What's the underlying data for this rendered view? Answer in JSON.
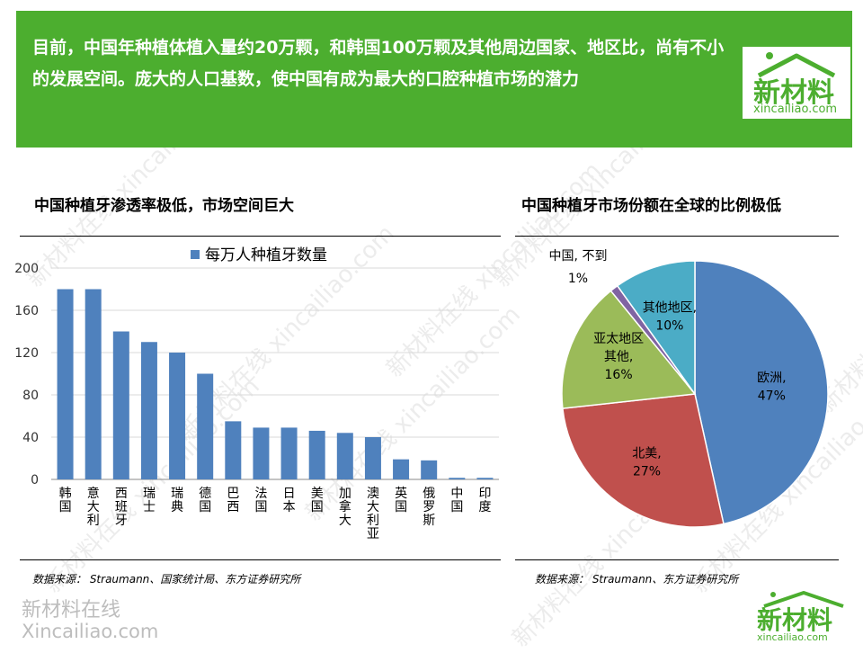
{
  "banner": {
    "text": "目前，中国年种植体植入量约20万颗，和韩国100万颗及其他周边国家、地区比，尚有不小的发展空间。庞大的人口基数，使中国有成为最大的口腔种植市场的潜力"
  },
  "logo": {
    "cn": "新材料",
    "en": "xincailiao.com"
  },
  "left_title": "中国种植牙渗透率极低，市场空间巨大",
  "right_title": "中国种植牙市场份额在全球的比例极低",
  "left_source": "数据来源： Straumann、国家统计局、东方证券研究所",
  "right_source": "数据来源： Straumann、东方证券研究所",
  "bottom_watermark": {
    "cn": "新材料在线",
    "en": "Xincailiao.com"
  },
  "watermark_text": "新材料在线 xincailiao.com",
  "colors": {
    "brand_green": "#4cae2f",
    "bar": "#4f81bd",
    "europe": "#4f81bd",
    "north_america": "#c0504d",
    "asia_pacific": "#9bbb59",
    "china": "#8064a2",
    "other": "#4bacc6"
  },
  "chart_data": [
    {
      "type": "bar",
      "title": "",
      "legend": "每万人种植牙数量",
      "legend_position": "top",
      "grid": true,
      "categories": [
        "韩国",
        "意大利",
        "西班牙",
        "瑞士",
        "瑞典",
        "德国",
        "巴西",
        "法国",
        "日本",
        "美国",
        "加拿大",
        "澳大利亚",
        "英国",
        "俄罗斯",
        "中国",
        "印度"
      ],
      "series": [
        {
          "name": "每万人种植牙数量",
          "values": [
            180,
            180,
            140,
            130,
            120,
            100,
            55,
            49,
            49,
            46,
            44,
            40,
            19,
            18,
            1.5,
            1.5
          ]
        }
      ],
      "ylim": [
        0,
        200
      ],
      "yticks": [
        0,
        40,
        80,
        120,
        160,
        200
      ],
      "xlabel": "",
      "ylabel": ""
    },
    {
      "type": "pie",
      "title": "",
      "slices": [
        {
          "name": "欧洲",
          "value": 47,
          "label": "47%"
        },
        {
          "name": "北美",
          "value": 27,
          "label": "27%"
        },
        {
          "name": "亚太地区其他",
          "label_line1": "亚太地区",
          "label_line2": "其他,",
          "value": 16,
          "label": "16%"
        },
        {
          "name": "中国, 不到",
          "value": 1,
          "label": "1%"
        },
        {
          "name": "其他地区",
          "value": 10,
          "label": "10%"
        }
      ]
    }
  ]
}
